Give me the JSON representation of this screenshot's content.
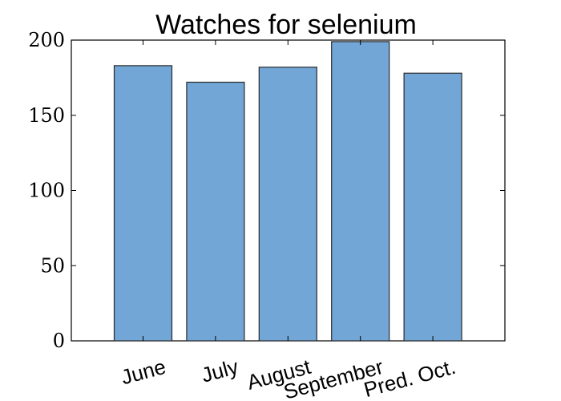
{
  "chart_data": {
    "type": "bar",
    "title": "Watches for selenium",
    "xlabel": "",
    "ylabel": "",
    "categories": [
      "June",
      "July",
      "August",
      "September",
      "Pred. Oct."
    ],
    "values": [
      183,
      172,
      182,
      199,
      178
    ],
    "ylim": [
      0,
      200
    ],
    "yticks": [
      0,
      50,
      100,
      150,
      200
    ],
    "grid": false,
    "legend": "none",
    "colors": {
      "bar_fill": "#72a6d6",
      "bar_edge": "#2b2b2b",
      "axes": "#000000",
      "background": "#ffffff"
    }
  }
}
